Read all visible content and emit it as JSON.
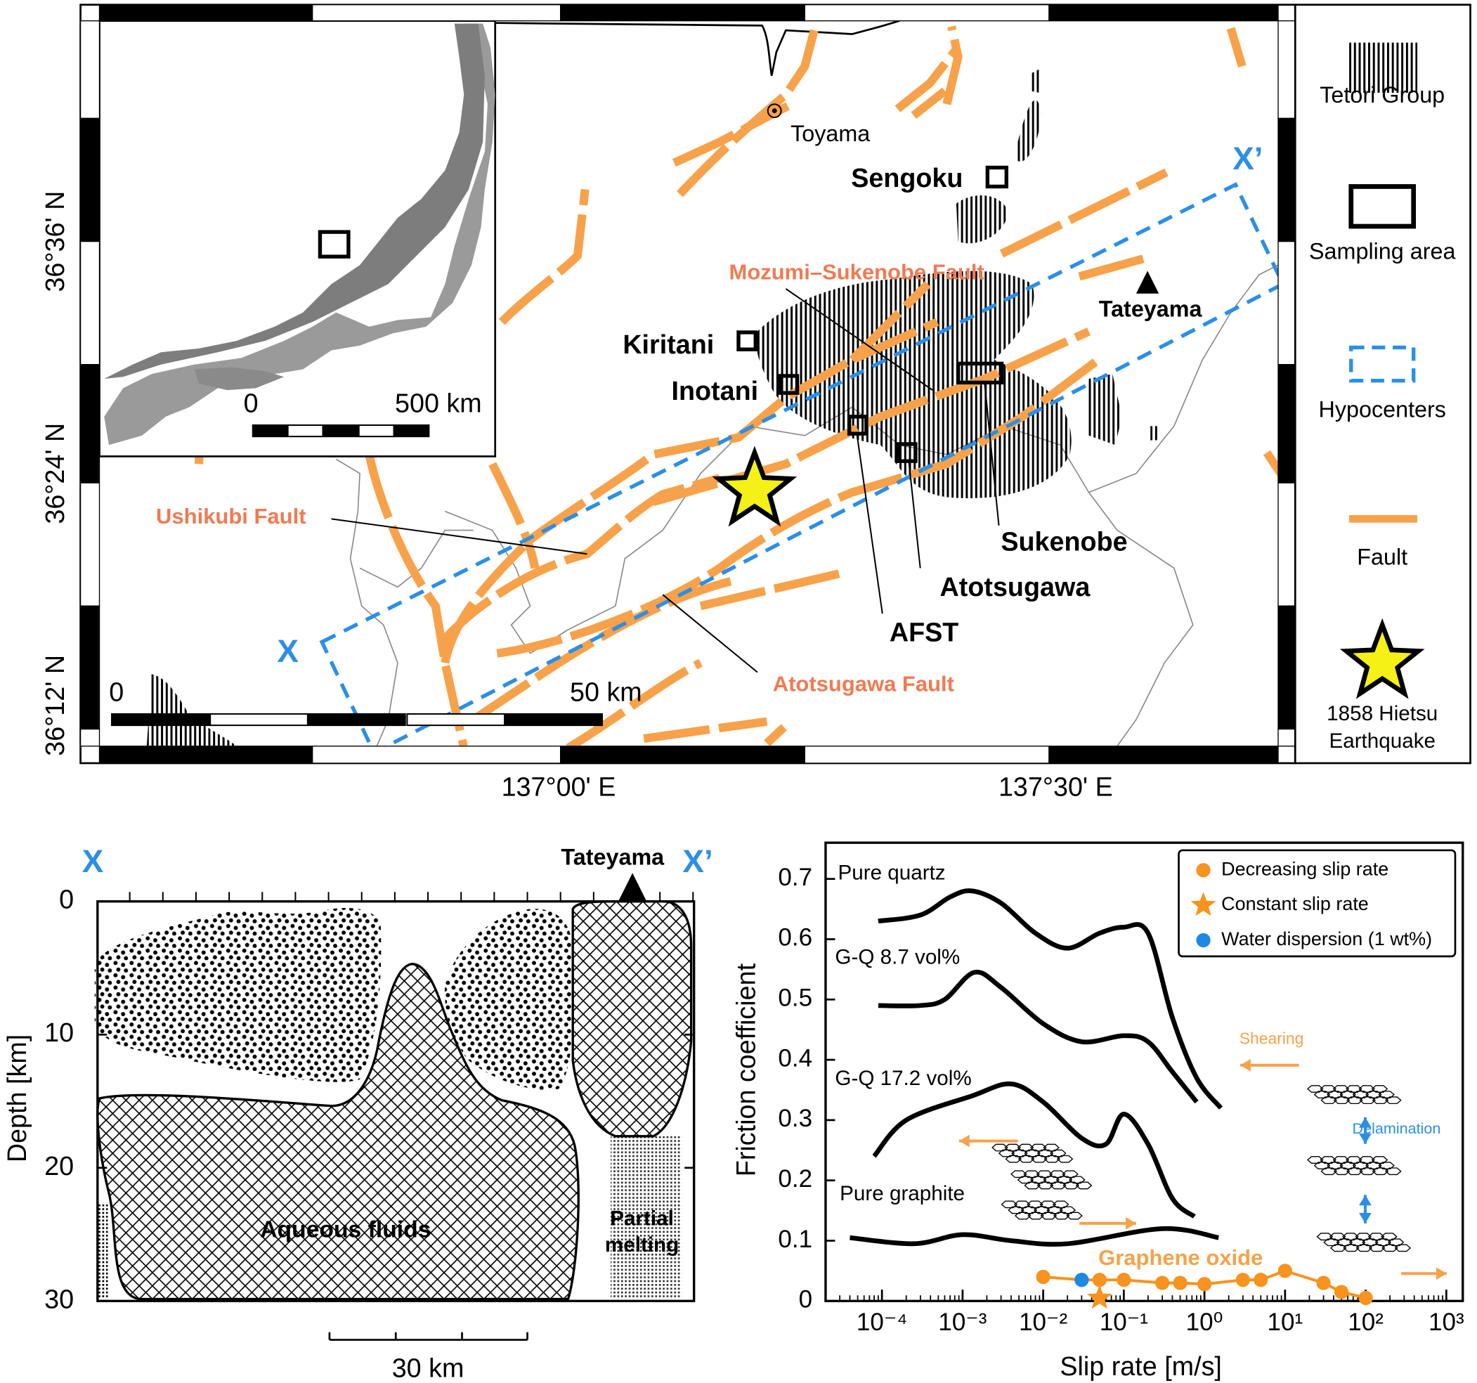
{
  "map": {
    "lat_labels": [
      "36°36' N",
      "36°24' N",
      "36°12' N"
    ],
    "lon_labels": [
      "137°00' E",
      "137°30' E"
    ],
    "inset_scale": [
      "0",
      "500 km"
    ],
    "scale": [
      "0",
      "50 km"
    ],
    "places": [
      "Toyama",
      "Sengoku",
      "Tateyama",
      "Kiritani",
      "Inotani",
      "Sukenobe",
      "Atotsugawa",
      "AFST"
    ],
    "faults": [
      "Mozumi–Sukenobe Fault",
      "Ushikubi Fault",
      "Atotsugawa Fault"
    ],
    "section_ends": [
      "X",
      "X’"
    ],
    "legend": [
      "Tetori Group",
      "Sampling area",
      "Hypocenters",
      "Fault"
    ],
    "legend_quake_lines": [
      "1858 Hietsu",
      "Earthquake"
    ]
  },
  "section": {
    "ends": [
      "X",
      "X’"
    ],
    "peak": "Tateyama",
    "y_label": "Depth [km]",
    "ylim": [
      0,
      30
    ],
    "yticks": [
      0,
      10,
      20,
      30
    ],
    "scale": "30 km",
    "regions": [
      "Aqueous fluids"
    ],
    "melt_lines": [
      "Partial",
      "melting"
    ]
  },
  "chart_data": {
    "type": "line",
    "x_label": "Slip rate [m/s]",
    "y_label": "Friction coefficient",
    "log_x": true,
    "xlim": [
      2e-05,
      1600
    ],
    "ylim": [
      0,
      0.76
    ],
    "xticks": [
      {
        "value": 0.0001,
        "label": "10⁻⁴"
      },
      {
        "value": 0.001,
        "label": "10⁻³"
      },
      {
        "value": 0.01,
        "label": "10⁻²"
      },
      {
        "value": 0.1,
        "label": "10⁻¹"
      },
      {
        "value": 1,
        "label": "10⁰"
      },
      {
        "value": 10,
        "label": "10¹"
      },
      {
        "value": 100,
        "label": "10²"
      },
      {
        "value": 1000,
        "label": "10³"
      }
    ],
    "yticks": [
      0,
      0.1,
      0.2,
      0.3,
      0.4,
      0.5,
      0.6,
      0.7
    ],
    "series": [
      {
        "name": "Pure quartz",
        "color": "#000000",
        "x": [
          9e-05,
          0.0003,
          0.0007,
          0.0013,
          0.003,
          0.008,
          0.02,
          0.05,
          0.1,
          0.2,
          0.4,
          0.8,
          1.6
        ],
        "values": [
          0.63,
          0.64,
          0.67,
          0.68,
          0.66,
          0.61,
          0.585,
          0.61,
          0.62,
          0.61,
          0.47,
          0.37,
          0.32
        ]
      },
      {
        "name": "G-Q 8.7 vol%",
        "color": "#000000",
        "x": [
          9e-05,
          0.0003,
          0.0006,
          0.0014,
          0.003,
          0.01,
          0.03,
          0.1,
          0.2,
          0.4,
          0.8
        ],
        "values": [
          0.49,
          0.49,
          0.5,
          0.545,
          0.52,
          0.46,
          0.43,
          0.44,
          0.43,
          0.38,
          0.33
        ]
      },
      {
        "name": "G-Q 17.2 vol%",
        "color": "#000000",
        "x": [
          8e-05,
          0.0002,
          0.0013,
          0.004,
          0.01,
          0.03,
          0.06,
          0.1,
          0.2,
          0.4,
          0.75
        ],
        "values": [
          0.24,
          0.3,
          0.34,
          0.36,
          0.33,
          0.27,
          0.26,
          0.31,
          0.26,
          0.17,
          0.14
        ]
      },
      {
        "name": "Pure graphite",
        "color": "#000000",
        "x": [
          4e-05,
          0.00025,
          0.001,
          0.004,
          0.02,
          0.3,
          1.5
        ],
        "values": [
          0.105,
          0.095,
          0.11,
          0.1,
          0.095,
          0.12,
          0.105
        ]
      }
    ],
    "points": [
      {
        "name": "Decreasing slip rate",
        "color": "#f7931e",
        "marker": "circle",
        "x": [
          0.01,
          0.03,
          0.05,
          0.1,
          0.3,
          0.5,
          1,
          3,
          5,
          10,
          30,
          50,
          100
        ],
        "values": [
          0.04,
          0.035,
          0.035,
          0.035,
          0.03,
          0.03,
          0.028,
          0.035,
          0.035,
          0.05,
          0.03,
          0.015,
          0.005
        ]
      },
      {
        "name": "Constant slip rate",
        "color": "#f7931e",
        "marker": "star",
        "x": [
          0.05
        ],
        "values": [
          0.005
        ]
      },
      {
        "name": "Water dispersion (1 wt%)",
        "color": "#1e88e5",
        "marker": "circle",
        "x": [
          0.03
        ],
        "values": [
          0.035
        ]
      }
    ],
    "annotations": [
      "Graphene oxide",
      "Shearing",
      "Delamination"
    ]
  }
}
